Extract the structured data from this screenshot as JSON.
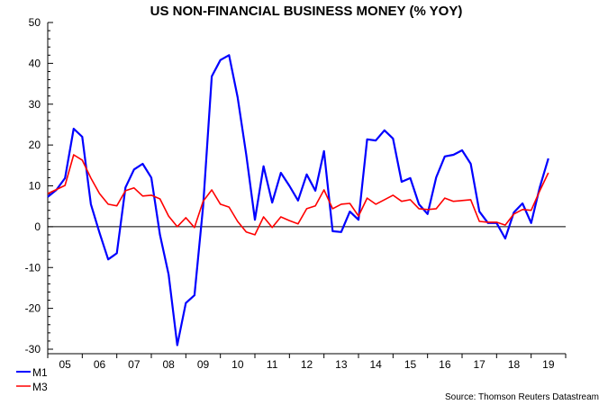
{
  "chart_data": {
    "type": "line",
    "title": "US NON-FINANCIAL BUSINESS MONEY (% YOY)",
    "xlabel": "",
    "ylabel": "",
    "ylim": [
      -30,
      50
    ],
    "yticks": [
      "50",
      "40",
      "30",
      "20",
      "10",
      "0",
      "-10",
      "-20",
      "-30"
    ],
    "yticks_values": [
      50,
      40,
      30,
      20,
      10,
      0,
      -10,
      -20,
      -30
    ],
    "xlim": [
      2005,
      2020
    ],
    "xtick_labels": [
      "05",
      "06",
      "07",
      "08",
      "09",
      "10",
      "11",
      "12",
      "13",
      "14",
      "15",
      "16",
      "17",
      "18",
      "19"
    ],
    "x_start": 2005,
    "x_step": 0.25,
    "grid": false,
    "zero_line": true,
    "legend_position": "bottom-left",
    "source": "Source: Thomson Reuters Datastream",
    "series": [
      {
        "name": "M1",
        "color": "#0000ff",
        "values": [
          7.3,
          9,
          11.9,
          24,
          22,
          5.5,
          -1.5,
          -8,
          -6.5,
          9.6,
          14,
          15.4,
          12,
          -2,
          -11.7,
          -29,
          -18.7,
          -16.8,
          5,
          36.8,
          40.8,
          42,
          31.7,
          17.6,
          1.7,
          14.8,
          5.9,
          13.2,
          10,
          6.4,
          12.8,
          8.8,
          18.5,
          -1.1,
          -1.3,
          3.7,
          1.7,
          21.4,
          21.1,
          23.6,
          21.6,
          11,
          11.9,
          5.5,
          3.1,
          12.1,
          17.2,
          17.6,
          18.7,
          15.4,
          3.7,
          0.9,
          0.9,
          -2.9,
          3.5,
          5.7,
          0.9,
          9.7,
          16.7
        ]
      },
      {
        "name": "M3",
        "color": "#ff0000",
        "values": [
          8.1,
          9.1,
          10.1,
          17.6,
          16.3,
          11.9,
          8.1,
          5.5,
          5.1,
          8.8,
          9.5,
          7.5,
          7.7,
          6.8,
          2.6,
          0,
          2.2,
          -0.2,
          6.2,
          9.0,
          5.5,
          4.8,
          1.3,
          -1.3,
          -2.0,
          2.4,
          -0.2,
          2.4,
          1.5,
          0.7,
          4.4,
          5.1,
          9.0,
          4.4,
          5.5,
          5.7,
          2.6,
          7.0,
          5.5,
          6.6,
          7.7,
          6.2,
          6.6,
          4.4,
          4.2,
          4.4,
          7.0,
          6.2,
          6.4,
          6.6,
          1.3,
          1.1,
          1.1,
          0.4,
          3.1,
          4.2,
          4.0,
          8.8,
          13.2
        ]
      }
    ]
  }
}
